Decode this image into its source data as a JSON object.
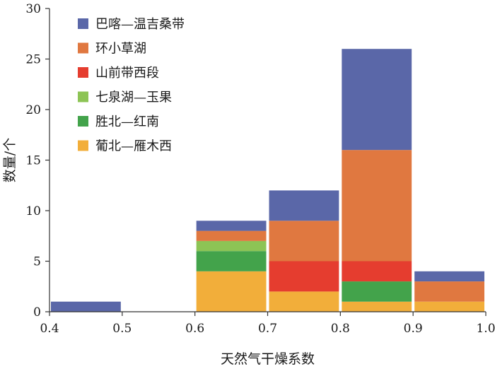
{
  "chart_data": {
    "type": "bar",
    "stacked": true,
    "xlabel": "天然气干燥系数",
    "ylabel": "数量/个",
    "xlim": [
      0.4,
      1.0
    ],
    "ylim": [
      0,
      30
    ],
    "x_ticks": [
      "0.4",
      "0.5",
      "0.6",
      "0.7",
      "0.8",
      "0.9",
      "1.0"
    ],
    "y_ticks": [
      "0",
      "5",
      "10",
      "15",
      "20",
      "25",
      "30"
    ],
    "legend_position": "top-left",
    "grid": false,
    "bins": [
      {
        "from": 0.4,
        "to": 0.5
      },
      {
        "from": 0.6,
        "to": 0.7
      },
      {
        "from": 0.7,
        "to": 0.8
      },
      {
        "from": 0.8,
        "to": 0.9
      },
      {
        "from": 0.9,
        "to": 1.0
      }
    ],
    "series": [
      {
        "name": "葡北—雁木西",
        "color": "#F2AE3A",
        "values": [
          0,
          4,
          2,
          1,
          1
        ]
      },
      {
        "name": "胜北—红南",
        "color": "#43A34B",
        "values": [
          0,
          2,
          0,
          2,
          0
        ]
      },
      {
        "name": "七泉湖—玉果",
        "color": "#8DC455",
        "values": [
          0,
          1,
          0,
          0,
          0
        ]
      },
      {
        "name": "山前带西段",
        "color": "#E53D2F",
        "values": [
          0,
          0,
          3,
          2,
          0
        ]
      },
      {
        "name": "环小草湖",
        "color": "#E07840",
        "values": [
          0,
          1,
          4,
          11,
          2
        ]
      },
      {
        "name": "巴喀—温吉桑带",
        "color": "#5A67A8",
        "values": [
          1,
          1,
          3,
          10,
          1
        ]
      }
    ],
    "legend_order": [
      "巴喀—温吉桑带",
      "环小草湖",
      "山前带西段",
      "七泉湖—玉果",
      "胜北—红南",
      "葡北—雁木西"
    ]
  }
}
